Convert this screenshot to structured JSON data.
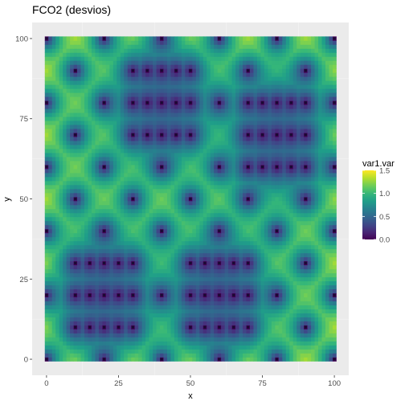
{
  "chart_data": {
    "type": "heatmap",
    "title": "FCO2 (desvios)",
    "xlabel": "x",
    "ylabel": "y",
    "xlim": [
      -5,
      105
    ],
    "ylim": [
      -5,
      105
    ],
    "x_ticks": [
      0,
      25,
      50,
      75,
      100
    ],
    "y_ticks": [
      0,
      25,
      50,
      75,
      100
    ],
    "x_tick_labels": [
      "0",
      "25",
      "50",
      "75",
      "100"
    ],
    "y_tick_labels": [
      "0",
      "25",
      "50",
      "75",
      "100"
    ],
    "grid": true,
    "colorscale": "viridis",
    "legend": {
      "title": "var1.var",
      "placement": "right",
      "range": [
        0,
        1.5
      ],
      "ticks": [
        0.0,
        0.5,
        1.0,
        1.5
      ],
      "tick_labels": [
        "0.0",
        "0.5",
        "1.0",
        "1.5"
      ]
    },
    "points": [
      [
        0,
        0
      ],
      [
        20,
        0
      ],
      [
        40,
        0
      ],
      [
        60,
        0
      ],
      [
        80,
        0
      ],
      [
        100,
        0
      ],
      [
        10,
        10
      ],
      [
        15,
        10
      ],
      [
        20,
        10
      ],
      [
        25,
        10
      ],
      [
        30,
        10
      ],
      [
        50,
        10
      ],
      [
        55,
        10
      ],
      [
        60,
        10
      ],
      [
        65,
        10
      ],
      [
        70,
        10
      ],
      [
        90,
        10
      ],
      [
        0,
        20
      ],
      [
        10,
        20
      ],
      [
        15,
        20
      ],
      [
        20,
        20
      ],
      [
        25,
        20
      ],
      [
        30,
        20
      ],
      [
        40,
        20
      ],
      [
        50,
        20
      ],
      [
        55,
        20
      ],
      [
        60,
        20
      ],
      [
        65,
        20
      ],
      [
        70,
        20
      ],
      [
        80,
        20
      ],
      [
        100,
        20
      ],
      [
        10,
        30
      ],
      [
        15,
        30
      ],
      [
        20,
        30
      ],
      [
        25,
        30
      ],
      [
        30,
        30
      ],
      [
        50,
        30
      ],
      [
        55,
        30
      ],
      [
        60,
        30
      ],
      [
        65,
        30
      ],
      [
        70,
        30
      ],
      [
        90,
        30
      ],
      [
        0,
        40
      ],
      [
        20,
        40
      ],
      [
        40,
        40
      ],
      [
        60,
        40
      ],
      [
        80,
        40
      ],
      [
        100,
        40
      ],
      [
        10,
        50
      ],
      [
        30,
        50
      ],
      [
        50,
        50
      ],
      [
        70,
        50
      ],
      [
        90,
        50
      ],
      [
        0,
        60
      ],
      [
        20,
        60
      ],
      [
        40,
        60
      ],
      [
        60,
        60
      ],
      [
        70,
        60
      ],
      [
        75,
        60
      ],
      [
        80,
        60
      ],
      [
        85,
        60
      ],
      [
        90,
        60
      ],
      [
        100,
        60
      ],
      [
        10,
        70
      ],
      [
        30,
        70
      ],
      [
        35,
        70
      ],
      [
        40,
        70
      ],
      [
        45,
        70
      ],
      [
        50,
        70
      ],
      [
        70,
        70
      ],
      [
        75,
        70
      ],
      [
        80,
        70
      ],
      [
        85,
        70
      ],
      [
        90,
        70
      ],
      [
        0,
        80
      ],
      [
        20,
        80
      ],
      [
        30,
        80
      ],
      [
        35,
        80
      ],
      [
        40,
        80
      ],
      [
        45,
        80
      ],
      [
        50,
        80
      ],
      [
        60,
        80
      ],
      [
        70,
        80
      ],
      [
        75,
        80
      ],
      [
        80,
        80
      ],
      [
        85,
        80
      ],
      [
        90,
        80
      ],
      [
        100,
        80
      ],
      [
        10,
        90
      ],
      [
        30,
        90
      ],
      [
        35,
        90
      ],
      [
        40,
        90
      ],
      [
        45,
        90
      ],
      [
        50,
        90
      ],
      [
        70,
        90
      ],
      [
        90,
        90
      ],
      [
        0,
        100
      ],
      [
        20,
        100
      ],
      [
        40,
        100
      ],
      [
        60,
        100
      ],
      [
        80,
        100
      ],
      [
        100,
        100
      ]
    ],
    "color_low": "#440154",
    "color_high": "#fde725",
    "panel_bg": "#ebebeb",
    "point_color": "#1a0a33"
  }
}
